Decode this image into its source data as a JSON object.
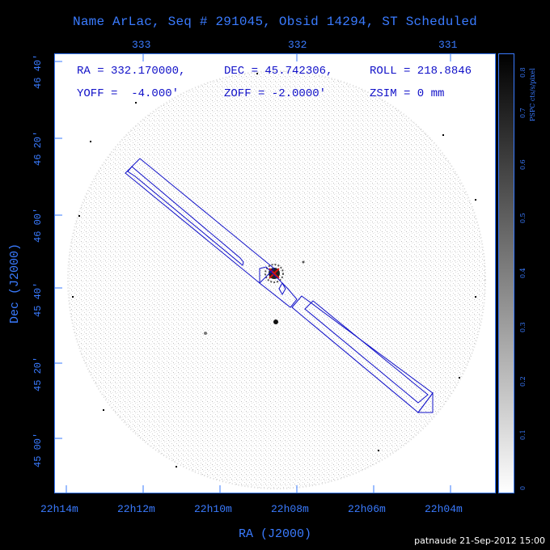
{
  "title": "Name ArLac, Seq # 291045, Obsid 14294, ST Scheduled",
  "top_ticks": [
    "333",
    "332",
    "331"
  ],
  "bottom_ticks": [
    "22h14m",
    "22h12m",
    "22h10m",
    "22h08m",
    "22h06m",
    "22h04m"
  ],
  "left_ticks": [
    "46 40'",
    "46 20'",
    "46 00'",
    "45 40'",
    "45 20'",
    "45 00'"
  ],
  "x_axis_title": "RA (J2000)",
  "y_axis_title": "Dec (J2000)",
  "info": {
    "ra": "RA = 332.170000,",
    "dec": "DEC = 45.742306,",
    "roll": "ROLL = 218.8846",
    "yoff": "YOFF =  -4.000'",
    "zoff": "ZOFF = -2.0000'",
    "zsim": "ZSIM = 0 mm"
  },
  "colorbar": {
    "label": "PSPC cts/s/pixel",
    "ticks": [
      "0",
      "0.1",
      "0.2",
      "0.3",
      "0.4",
      "0.5",
      "0.6",
      "0.7",
      "0.8"
    ]
  },
  "footer": "patnaude 21-Sep-2012 15:00",
  "colors": {
    "axis": "#3a7bff",
    "overlay": "#1010c8",
    "background": "#000000",
    "field": "#ffffff"
  }
}
